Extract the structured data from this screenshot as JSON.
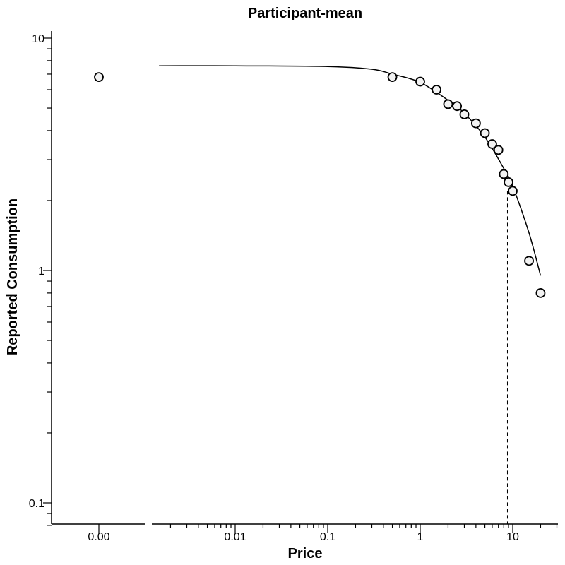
{
  "chart_data": {
    "type": "scatter",
    "title": "Participant-mean",
    "xlabel": "Price",
    "ylabel": "Reported Consumption",
    "x_scale": "log",
    "y_scale": "log",
    "xlim": [
      0.001,
      30
    ],
    "ylim": [
      0.08,
      10.5
    ],
    "x_ticks": [
      {
        "value": 0.01,
        "label": "0.01"
      },
      {
        "value": 0.1,
        "label": "0.1"
      },
      {
        "value": 1,
        "label": "1"
      },
      {
        "value": 10,
        "label": "10"
      }
    ],
    "zero_price_tick_label": "0.00",
    "y_ticks": [
      {
        "value": 0.1,
        "label": "0.1"
      },
      {
        "value": 1,
        "label": "1"
      },
      {
        "value": 10,
        "label": "10"
      }
    ],
    "zero_price_point": {
      "x": 0,
      "y": 6.8
    },
    "series": [
      {
        "points": [
          {
            "x": 0.5,
            "y": 6.8
          },
          {
            "x": 1,
            "y": 6.5
          },
          {
            "x": 1.5,
            "y": 6.0
          },
          {
            "x": 2,
            "y": 5.2
          },
          {
            "x": 2.5,
            "y": 5.1
          },
          {
            "x": 3,
            "y": 4.7
          },
          {
            "x": 4,
            "y": 4.3
          },
          {
            "x": 5,
            "y": 3.9
          },
          {
            "x": 6,
            "y": 3.5
          },
          {
            "x": 7,
            "y": 3.3
          },
          {
            "x": 8,
            "y": 2.6
          },
          {
            "x": 9,
            "y": 2.4
          },
          {
            "x": 10,
            "y": 2.2
          },
          {
            "x": 15,
            "y": 1.1
          },
          {
            "x": 20,
            "y": 0.8
          }
        ]
      }
    ],
    "fitted_curve": [
      {
        "x": 0.0015,
        "y": 7.6
      },
      {
        "x": 0.01,
        "y": 7.6
      },
      {
        "x": 0.1,
        "y": 7.55
      },
      {
        "x": 0.3,
        "y": 7.35
      },
      {
        "x": 0.5,
        "y": 7.0
      },
      {
        "x": 1,
        "y": 6.45
      },
      {
        "x": 2,
        "y": 5.4
      },
      {
        "x": 3,
        "y": 4.75
      },
      {
        "x": 5,
        "y": 3.75
      },
      {
        "x": 8,
        "y": 2.75
      },
      {
        "x": 10,
        "y": 2.3
      },
      {
        "x": 15,
        "y": 1.45
      },
      {
        "x": 20,
        "y": 0.95
      }
    ],
    "pmax_marker": {
      "x": 8.8,
      "y": 2.2
    },
    "grid": false,
    "legend": "none"
  }
}
